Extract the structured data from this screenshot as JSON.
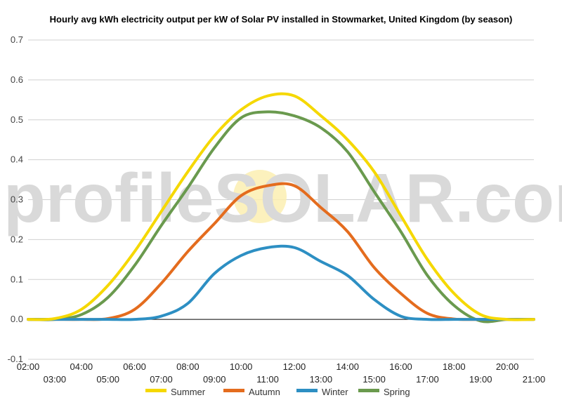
{
  "chart_data": {
    "type": "line",
    "title": "Hourly avg kWh electricity output per kW of Solar PV installed in Stowmarket, United Kingdom (by season)",
    "watermark": "profileSOLAR.com",
    "ylim": [
      -0.1,
      0.7
    ],
    "yticks": [
      "-0.1",
      "0.0",
      "0.1",
      "0.2",
      "0.3",
      "0.4",
      "0.5",
      "0.6",
      "0.7"
    ],
    "xlim": [
      2,
      21
    ],
    "xticks": [
      {
        "label": "02:00",
        "value": 2,
        "row": 1
      },
      {
        "label": "03:00",
        "value": 3,
        "row": 2
      },
      {
        "label": "04:00",
        "value": 4,
        "row": 1
      },
      {
        "label": "05:00",
        "value": 5,
        "row": 2
      },
      {
        "label": "06:00",
        "value": 6,
        "row": 1
      },
      {
        "label": "07:00",
        "value": 7,
        "row": 2
      },
      {
        "label": "08:00",
        "value": 8,
        "row": 1
      },
      {
        "label": "09:00",
        "value": 9,
        "row": 2
      },
      {
        "label": "10:00",
        "value": 10,
        "row": 1
      },
      {
        "label": "11:00",
        "value": 11,
        "row": 2
      },
      {
        "label": "12:00",
        "value": 12,
        "row": 1
      },
      {
        "label": "13:00",
        "value": 13,
        "row": 2
      },
      {
        "label": "14:00",
        "value": 14,
        "row": 1
      },
      {
        "label": "15:00",
        "value": 15,
        "row": 2
      },
      {
        "label": "16:00",
        "value": 16,
        "row": 1
      },
      {
        "label": "17:00",
        "value": 17,
        "row": 2
      },
      {
        "label": "18:00",
        "value": 18,
        "row": 1
      },
      {
        "label": "19:00",
        "value": 19,
        "row": 2
      },
      {
        "label": "20:00",
        "value": 20,
        "row": 1
      },
      {
        "label": "21:00",
        "value": 21,
        "row": 2
      }
    ],
    "x": [
      2,
      3,
      4,
      5,
      6,
      7,
      8,
      9,
      10,
      11,
      12,
      13,
      14,
      15,
      16,
      17,
      18,
      19,
      20,
      21
    ],
    "series": [
      {
        "name": "Summer",
        "color": "#f5d800",
        "values": [
          0.0,
          0.002,
          0.025,
          0.085,
          0.17,
          0.27,
          0.37,
          0.46,
          0.525,
          0.56,
          0.56,
          0.51,
          0.45,
          0.37,
          0.26,
          0.15,
          0.065,
          0.012,
          0.0,
          0.0
        ]
      },
      {
        "name": "Autumn",
        "color": "#e46c1e",
        "values": [
          0.0,
          0.0,
          0.0,
          0.002,
          0.025,
          0.09,
          0.17,
          0.24,
          0.31,
          0.335,
          0.335,
          0.28,
          0.22,
          0.13,
          0.065,
          0.015,
          0.001,
          0.0,
          0.0,
          0.0
        ]
      },
      {
        "name": "Winter",
        "color": "#2d8fc3",
        "values": [
          0.0,
          0.0,
          0.0,
          0.0,
          0.0,
          0.008,
          0.04,
          0.115,
          0.16,
          0.18,
          0.18,
          0.145,
          0.11,
          0.05,
          0.008,
          0.0,
          0.0,
          0.0,
          0.0,
          0.0
        ]
      },
      {
        "name": "Spring",
        "color": "#6a9a4e",
        "values": [
          0.0,
          0.0,
          0.012,
          0.055,
          0.135,
          0.235,
          0.33,
          0.43,
          0.505,
          0.52,
          0.51,
          0.48,
          0.42,
          0.32,
          0.22,
          0.11,
          0.035,
          -0.004,
          0.0,
          0.0
        ]
      }
    ],
    "legend_position": "bottom",
    "grid": true
  }
}
